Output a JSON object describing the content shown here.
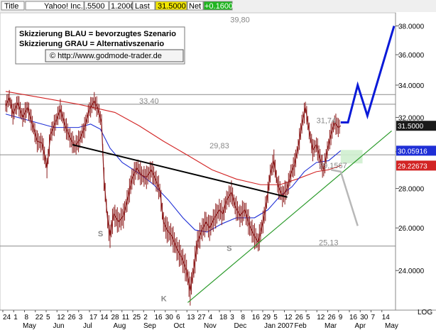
{
  "header": {
    "title_label": "Title",
    "ticker": "Yahoo! Inc.",
    "prev_value": ".5500",
    "prev_value2": "1.2000",
    "last_label": "Last",
    "last_value": "31.5000",
    "net_label": "Net",
    "net_value": "+0.1600"
  },
  "legend": {
    "line1": "Skizzierung BLAU = bevorzugtes Szenario",
    "line2": "Skizzierung GRAU = Alternativszenario",
    "url": "© http://www.godmode-trader.de"
  },
  "colors": {
    "price": "#8b1a1a",
    "ma_blue": "#1f2fd6",
    "ma_red": "#d22323",
    "scenario_blue": "#0a1ad8",
    "scenario_grey": "#b8b8b8",
    "trendline": "#000000",
    "support": "#2a9a2a",
    "last_badge": "#1a1a1a",
    "ma_blue_badge": "#1f2fd6",
    "ma_red_badge": "#d22323",
    "net_badge": "#1fb51f",
    "last_header_badge": "#f2e600"
  },
  "chart_data": {
    "type": "line",
    "title": "Yahoo! Inc.",
    "yaxis": {
      "ticks": [
        "24.0000",
        "26.0000",
        "28.0000",
        "30.0000",
        "32.0000",
        "34.0000",
        "36.0000",
        "38.0000"
      ],
      "tick_values": [
        24,
        26,
        28,
        30,
        32,
        34,
        36,
        38
      ],
      "ylim": [
        22.28,
        38.95
      ],
      "unit_label": "LOG"
    },
    "x_month_labels": [
      "May",
      "Jun",
      "Jul",
      "Aug",
      "Sep",
      "Oct",
      "Nov",
      "Dec",
      "Jan 2007",
      "Feb",
      "Mar",
      "Apr",
      "May"
    ],
    "x_day_labels": [
      "24",
      "1",
      "8",
      "22",
      "5",
      "12",
      "26",
      "3",
      "17",
      "14",
      "28",
      "11",
      "25",
      "2",
      "16",
      "30",
      "6",
      "13",
      "27",
      "4",
      "18",
      "3",
      "8",
      "16",
      "29",
      "5",
      "12",
      "26",
      "5",
      "12",
      "26",
      "9",
      "16",
      "30",
      "7",
      "14"
    ],
    "price_series": [
      {
        "d": 0,
        "v": 32.7
      },
      {
        "d": 3,
        "v": 33.2
      },
      {
        "d": 6,
        "v": 32.2
      },
      {
        "d": 10,
        "v": 32.9
      },
      {
        "d": 14,
        "v": 32.0
      },
      {
        "d": 18,
        "v": 32.6
      },
      {
        "d": 22,
        "v": 31.6
      },
      {
        "d": 26,
        "v": 30.6
      },
      {
        "d": 30,
        "v": 30.5
      },
      {
        "d": 34,
        "v": 29.1
      },
      {
        "d": 37,
        "v": 31.0
      },
      {
        "d": 41,
        "v": 31.7
      },
      {
        "d": 45,
        "v": 32.5
      },
      {
        "d": 49,
        "v": 31.5
      },
      {
        "d": 53,
        "v": 30.8
      },
      {
        "d": 57,
        "v": 30.3
      },
      {
        "d": 61,
        "v": 30.7
      },
      {
        "d": 65,
        "v": 31.4
      },
      {
        "d": 69,
        "v": 32.5
      },
      {
        "d": 73,
        "v": 33.0
      },
      {
        "d": 76,
        "v": 32.5
      },
      {
        "d": 79,
        "v": 31.7
      },
      {
        "d": 81,
        "v": 28.5
      },
      {
        "d": 84,
        "v": 26.4
      },
      {
        "d": 86,
        "v": 25.6
      },
      {
        "d": 89,
        "v": 26.7
      },
      {
        "d": 93,
        "v": 26.3
      },
      {
        "d": 97,
        "v": 26.6
      },
      {
        "d": 101,
        "v": 27.6
      },
      {
        "d": 104,
        "v": 28.5
      },
      {
        "d": 108,
        "v": 29.1
      },
      {
        "d": 112,
        "v": 28.7
      },
      {
        "d": 116,
        "v": 28.6
      },
      {
        "d": 120,
        "v": 29.0
      },
      {
        "d": 124,
        "v": 28.4
      },
      {
        "d": 127,
        "v": 27.9
      },
      {
        "d": 130,
        "v": 26.3
      },
      {
        "d": 133,
        "v": 25.9
      },
      {
        "d": 137,
        "v": 25.6
      },
      {
        "d": 141,
        "v": 25.0
      },
      {
        "d": 145,
        "v": 24.6
      },
      {
        "d": 149,
        "v": 24.0
      },
      {
        "d": 152,
        "v": 23.1
      },
      {
        "d": 155,
        "v": 24.1
      },
      {
        "d": 158,
        "v": 25.3
      },
      {
        "d": 161,
        "v": 25.8
      },
      {
        "d": 165,
        "v": 26.3
      },
      {
        "d": 168,
        "v": 26.0
      },
      {
        "d": 172,
        "v": 26.5
      },
      {
        "d": 176,
        "v": 26.9
      },
      {
        "d": 179,
        "v": 26.7
      },
      {
        "d": 182,
        "v": 27.4
      },
      {
        "d": 186,
        "v": 27.8
      },
      {
        "d": 189,
        "v": 27.1
      },
      {
        "d": 193,
        "v": 26.6
      },
      {
        "d": 197,
        "v": 26.9
      },
      {
        "d": 201,
        "v": 26.1
      },
      {
        "d": 205,
        "v": 25.6
      },
      {
        "d": 208,
        "v": 25.3
      },
      {
        "d": 212,
        "v": 26.3
      },
      {
        "d": 215,
        "v": 27.3
      },
      {
        "d": 218,
        "v": 28.8
      },
      {
        "d": 221,
        "v": 29.5
      },
      {
        "d": 224,
        "v": 28.2
      },
      {
        "d": 228,
        "v": 27.6
      },
      {
        "d": 232,
        "v": 28.0
      },
      {
        "d": 235,
        "v": 28.8
      },
      {
        "d": 238,
        "v": 29.3
      },
      {
        "d": 241,
        "v": 30.3
      },
      {
        "d": 244,
        "v": 31.6
      },
      {
        "d": 247,
        "v": 32.6
      },
      {
        "d": 250,
        "v": 31.2
      },
      {
        "d": 253,
        "v": 30.1
      },
      {
        "d": 256,
        "v": 30.4
      },
      {
        "d": 259,
        "v": 29.6
      },
      {
        "d": 262,
        "v": 29.0
      },
      {
        "d": 265,
        "v": 30.1
      },
      {
        "d": 268,
        "v": 31.0
      },
      {
        "d": 271,
        "v": 31.7
      },
      {
        "d": 274,
        "v": 31.4
      },
      {
        "d": 276,
        "v": 31.5
      }
    ],
    "ma_blue_series": [
      {
        "d": 0,
        "v": 32.2
      },
      {
        "d": 20,
        "v": 31.8
      },
      {
        "d": 40,
        "v": 31.4
      },
      {
        "d": 60,
        "v": 31.4
      },
      {
        "d": 70,
        "v": 31.6
      },
      {
        "d": 78,
        "v": 31.3
      },
      {
        "d": 86,
        "v": 30.2
      },
      {
        "d": 96,
        "v": 29.4
      },
      {
        "d": 110,
        "v": 28.8
      },
      {
        "d": 122,
        "v": 28.2
      },
      {
        "d": 134,
        "v": 27.4
      },
      {
        "d": 146,
        "v": 26.5
      },
      {
        "d": 156,
        "v": 25.9
      },
      {
        "d": 166,
        "v": 25.8
      },
      {
        "d": 178,
        "v": 26.2
      },
      {
        "d": 190,
        "v": 26.5
      },
      {
        "d": 205,
        "v": 26.5
      },
      {
        "d": 216,
        "v": 26.9
      },
      {
        "d": 226,
        "v": 27.6
      },
      {
        "d": 236,
        "v": 28.1
      },
      {
        "d": 246,
        "v": 28.9
      },
      {
        "d": 256,
        "v": 29.4
      },
      {
        "d": 266,
        "v": 29.5
      },
      {
        "d": 276,
        "v": 30.06
      }
    ],
    "ma_red_series": [
      {
        "d": 0,
        "v": 33.6
      },
      {
        "d": 30,
        "v": 33.2
      },
      {
        "d": 60,
        "v": 32.8
      },
      {
        "d": 90,
        "v": 32.3
      },
      {
        "d": 110,
        "v": 31.5
      },
      {
        "d": 130,
        "v": 30.6
      },
      {
        "d": 150,
        "v": 29.8
      },
      {
        "d": 170,
        "v": 29.0
      },
      {
        "d": 190,
        "v": 28.5
      },
      {
        "d": 210,
        "v": 28.2
      },
      {
        "d": 226,
        "v": 28.2
      },
      {
        "d": 240,
        "v": 28.5
      },
      {
        "d": 256,
        "v": 28.9
      },
      {
        "d": 266,
        "v": 29.0
      },
      {
        "d": 276,
        "v": 29.23
      }
    ],
    "annotations": [
      {
        "text": "39,80",
        "d": 185,
        "v": 38.25
      },
      {
        "text": "33,40",
        "d": 110,
        "v": 32.85
      },
      {
        "text": "29,83",
        "d": 168,
        "v": 30.2
      },
      {
        "text": "31,74",
        "d": 256,
        "v": 31.65
      },
      {
        "text": "29,1567",
        "d": 258,
        "v": 29.08
      },
      {
        "text": "25,13",
        "d": 258,
        "v": 25.17
      },
      {
        "text": "S",
        "d": 76,
        "v": 25.6
      },
      {
        "text": "S",
        "d": 182,
        "v": 24.9
      },
      {
        "text": "K",
        "d": 128,
        "v": 22.65
      }
    ],
    "horizontal_levels": [
      33.4,
      32.8,
      29.83,
      25.13
    ],
    "right_badges": [
      {
        "label": "31.5000",
        "v": 31.5,
        "color_key": "last_badge"
      },
      {
        "label": "30.05916",
        "v": 30.06,
        "color_key": "ma_blue_badge"
      },
      {
        "label": "29.22673",
        "v": 29.23,
        "color_key": "ma_red_badge"
      }
    ]
  }
}
